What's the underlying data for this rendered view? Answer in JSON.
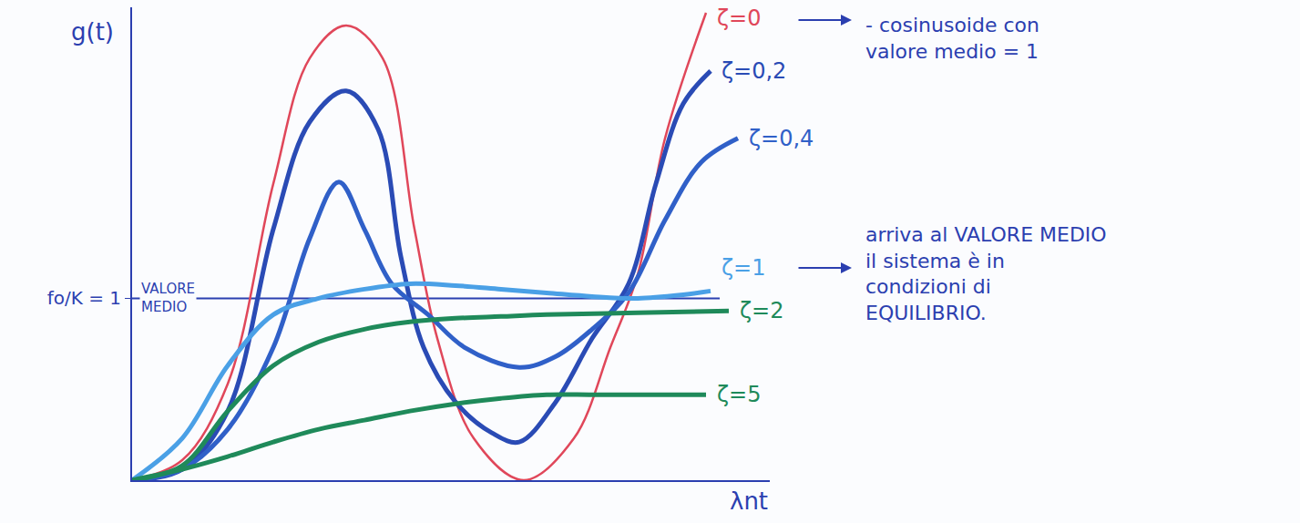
{
  "chart_data": {
    "type": "line",
    "x_label": "λnt",
    "y_label": "g(t)",
    "xlim": [
      0,
      7
    ],
    "ylim": [
      0,
      2.6
    ],
    "yticks": [
      {
        "value": 1,
        "label": "fo/K = 1"
      }
    ],
    "tick_labels": "y",
    "grid": false,
    "reference_line": {
      "y": 1,
      "x": [
        0,
        6.45
      ],
      "label": "VALORE MEDIO",
      "color": "#2b3fb0"
    },
    "series": [
      {
        "name": "ζ=0",
        "color": "#e0475a",
        "x": [
          0,
          0.55,
          1.05,
          1.55,
          1.95,
          2.35,
          2.75,
          3.1,
          3.35,
          3.75,
          4.3,
          4.85,
          5.25,
          5.55,
          5.85,
          6.3
        ],
        "values": [
          0,
          0.11,
          0.53,
          1.63,
          2.32,
          2.5,
          2.32,
          1.38,
          0.78,
          0.23,
          0,
          0.23,
          0.73,
          1.13,
          1.88,
          2.57
        ],
        "annotation": [
          "- cosinusoide con",
          "valore medio = 1"
        ]
      },
      {
        "name": "ζ=0,2",
        "color": "#2a4bb5",
        "x": [
          0,
          0.55,
          1.05,
          1.55,
          1.95,
          2.35,
          2.7,
          2.95,
          3.2,
          3.55,
          3.95,
          4.25,
          4.65,
          5.05,
          5.45,
          5.75,
          6.05,
          6.35
        ],
        "values": [
          0,
          0.06,
          0.38,
          1.38,
          1.97,
          2.14,
          1.93,
          1.23,
          0.73,
          0.43,
          0.26,
          0.21,
          0.43,
          0.78,
          1.08,
          1.63,
          2.07,
          2.25
        ]
      },
      {
        "name": "ζ=0,4",
        "color": "#3060c8",
        "x": [
          0,
          0.55,
          1.05,
          1.55,
          1.95,
          2.27,
          2.55,
          2.85,
          3.25,
          3.65,
          4.25,
          4.65,
          5.05,
          5.45,
          5.85,
          6.25,
          6.65
        ],
        "values": [
          0,
          0.06,
          0.28,
          0.73,
          1.33,
          1.64,
          1.38,
          1.08,
          0.91,
          0.73,
          0.62,
          0.68,
          0.83,
          1.03,
          1.43,
          1.75,
          1.88
        ]
      },
      {
        "name": "ζ=1",
        "color": "#4aa0e6",
        "x": [
          0,
          0.55,
          1.05,
          1.55,
          2.05,
          2.55,
          3.05,
          3.55,
          4.05,
          4.55,
          5.05,
          5.55,
          6.05,
          6.35
        ],
        "values": [
          0,
          0.23,
          0.63,
          0.91,
          1.0,
          1.05,
          1.08,
          1.07,
          1.05,
          1.03,
          1.01,
          1.0,
          1.02,
          1.04
        ],
        "annotation": [
          "arriva al VALORE MEDIO",
          "il sistema è in",
          "condizioni di",
          "EQUILIBRIO."
        ]
      },
      {
        "name": "ζ=2",
        "color": "#1f8a5a",
        "x": [
          0,
          0.55,
          1.05,
          1.55,
          2.05,
          2.55,
          3.05,
          3.55,
          4.05,
          4.55,
          5.55,
          6.55
        ],
        "values": [
          0,
          0.08,
          0.38,
          0.63,
          0.76,
          0.83,
          0.87,
          0.89,
          0.9,
          0.91,
          0.92,
          0.93
        ]
      },
      {
        "name": "ζ=5",
        "color": "#1f8a5a",
        "x": [
          0,
          0.55,
          1.05,
          1.55,
          2.05,
          2.55,
          3.05,
          3.55,
          4.05,
          4.55,
          5.05,
          5.55,
          6.3
        ],
        "values": [
          0,
          0.06,
          0.13,
          0.21,
          0.28,
          0.33,
          0.38,
          0.42,
          0.45,
          0.47,
          0.47,
          0.47,
          0.47
        ]
      }
    ]
  }
}
